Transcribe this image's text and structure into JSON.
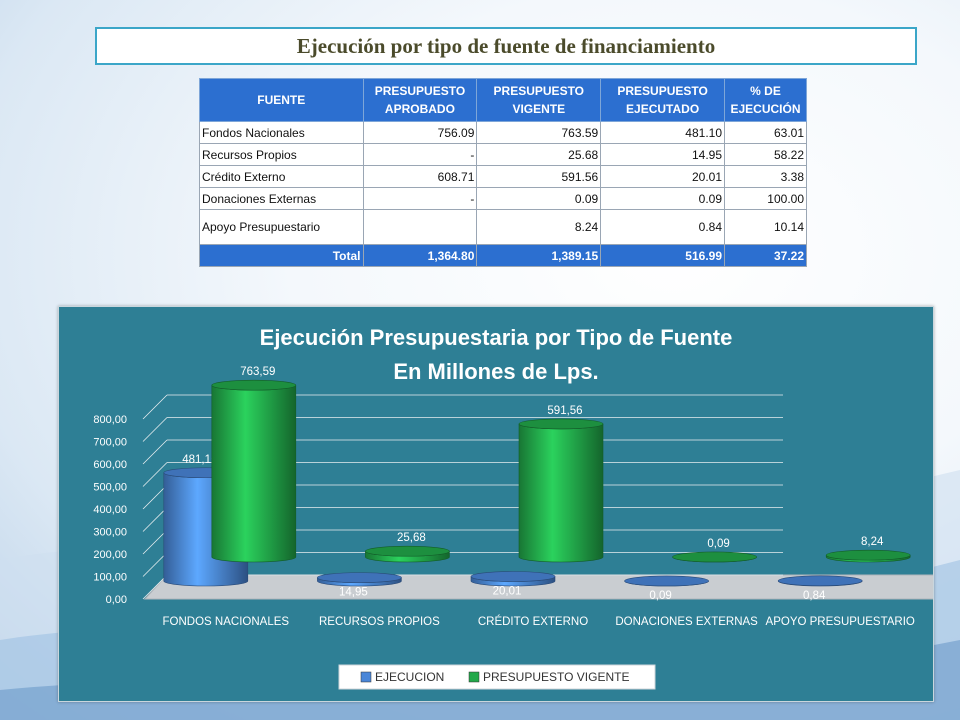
{
  "header": {
    "title": "Ejecución por tipo de fuente de financiamiento"
  },
  "table": {
    "headers": [
      "FUENTE",
      "PRESUPUESTO APROBADO",
      "PRESUPUESTO VIGENTE",
      "PRESUPUESTO EJECUTADO",
      "% DE EJECUCIÓN"
    ],
    "rows": [
      [
        "Fondos Nacionales",
        "756.09",
        "763.59",
        "481.10",
        "63.01"
      ],
      [
        "Recursos Propios",
        "-",
        "25.68",
        "14.95",
        "58.22"
      ],
      [
        "Crédito Externo",
        "608.71",
        "591.56",
        "20.01",
        "3.38"
      ],
      [
        "Donaciones Externas",
        "-",
        "0.09",
        "0.09",
        "100.00"
      ],
      [
        "Apoyo Presupuestario",
        "",
        "8.24",
        "0.84",
        "10.14"
      ]
    ],
    "total": [
      "Total",
      "1,364.80",
      "1,389.15",
      "516.99",
      "37.22"
    ]
  },
  "chart_data": {
    "type": "bar",
    "title": "Ejecución Presupuestaria por Tipo de Fuente",
    "subtitle": "En Millones de Lps.",
    "categories": [
      "FONDOS NACIONALES",
      "RECURSOS PROPIOS",
      "CRÉDITO EXTERNO",
      "DONACIONES EXTERNAS",
      "APOYO PRESUPUESTARIO"
    ],
    "series": [
      {
        "name": "EJECUCION",
        "values": [
          481.1,
          14.95,
          20.01,
          0.09,
          0.84
        ],
        "labels": [
          "481,10",
          "14,95",
          "20,01",
          "0,09",
          "0,84"
        ],
        "color": "#4a86d8"
      },
      {
        "name": "PRESUPUESTO VIGENTE",
        "values": [
          763.59,
          25.68,
          591.56,
          0.09,
          8.24
        ],
        "labels": [
          "763,59",
          "25,68",
          "591,56",
          "0,09",
          "8,24"
        ],
        "color": "#22a84a"
      }
    ],
    "yticks": [
      "0,00",
      "100,00",
      "200,00",
      "300,00",
      "400,00",
      "500,00",
      "600,00",
      "700,00",
      "800,00"
    ],
    "ylim": [
      0,
      800
    ],
    "grid": true,
    "legend": "bottom",
    "panel_color": "#2e7f95"
  }
}
